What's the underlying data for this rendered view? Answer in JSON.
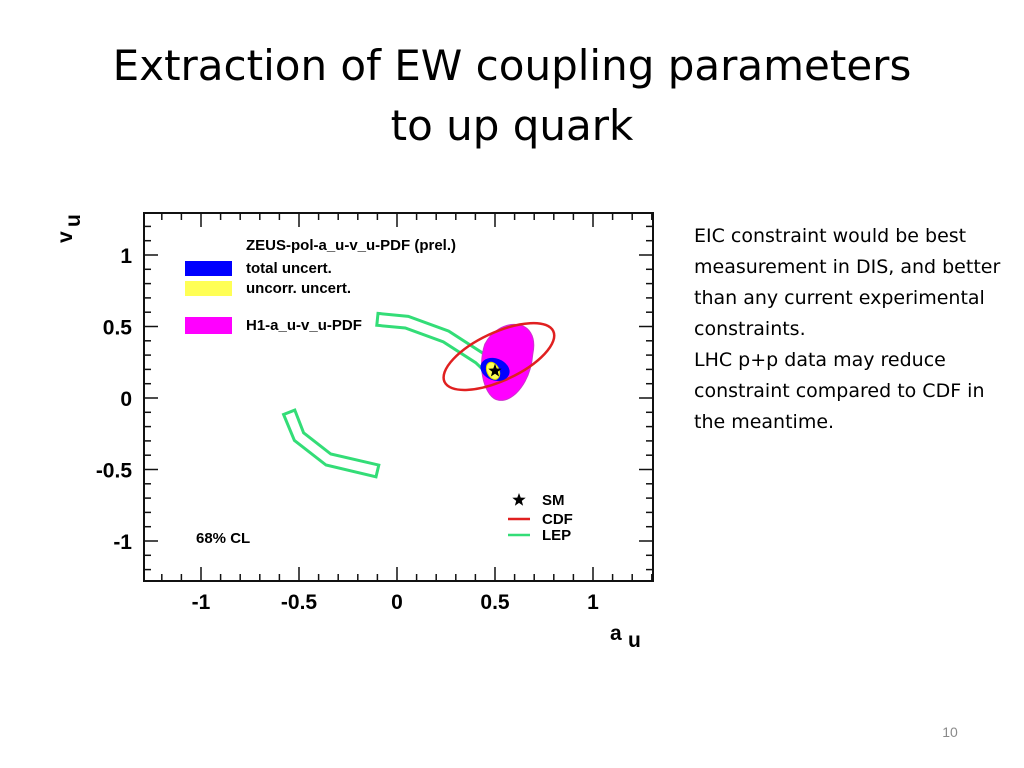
{
  "slide": {
    "title_line1": "Extraction of EW coupling parameters",
    "title_line2": "to up quark",
    "page_number": "10"
  },
  "side_text": {
    "para1": "EIC constraint would be best measurement in DIS, and better than any current experimental constraints.",
    "para2": "LHC p+p data may reduce constraint compared to CDF in the meantime."
  },
  "chart_data": {
    "type": "scatter",
    "xlabel": "a",
    "xlabel_sub": "u",
    "ylabel": "v",
    "ylabel_sub": "u",
    "xlim": [
      -1.3,
      1.3
    ],
    "ylim": [
      -1.3,
      1.3
    ],
    "xticks": [
      "-1",
      "-0.5",
      "0",
      "0.5",
      "1"
    ],
    "yticks": [
      "1",
      "0.5",
      "0",
      "-0.5",
      "-1"
    ],
    "cl_label": "68% CL",
    "legend_top": {
      "header": "ZEUS-pol-a_u-v_u-PDF (prel.)",
      "items": [
        {
          "label": "total uncert.",
          "color": "#0000ff"
        },
        {
          "label": "uncorr. uncert.",
          "color": "#ffff55"
        },
        {
          "label": "H1-a_u-v_u-PDF",
          "color": "#ff00ff"
        }
      ]
    },
    "legend_bottom": {
      "items": [
        {
          "label": "SM",
          "marker": "star",
          "color": "#000000"
        },
        {
          "label": "CDF",
          "marker": "line",
          "color": "#e02020"
        },
        {
          "label": "LEP",
          "marker": "line",
          "color": "#33dd77"
        }
      ]
    },
    "series": [
      {
        "name": "SM",
        "points": [
          {
            "x": 0.5,
            "y": 0.19
          }
        ]
      }
    ],
    "regions": {
      "h1_center": {
        "x": 0.56,
        "y": 0.25
      },
      "zeus_total_center": {
        "x": 0.5,
        "y": 0.2
      },
      "zeus_uncorr_center": {
        "x": 0.49,
        "y": 0.19
      },
      "cdf_center": {
        "x": 0.52,
        "y": 0.29
      },
      "lep_upper_arc": [
        [
          -0.1,
          0.55
        ],
        [
          0.05,
          0.53
        ],
        [
          0.25,
          0.43
        ],
        [
          0.42,
          0.28
        ],
        [
          0.52,
          0.15
        ]
      ],
      "lep_lower_arc": [
        [
          -0.55,
          -0.1
        ],
        [
          -0.5,
          -0.27
        ],
        [
          -0.35,
          -0.43
        ],
        [
          -0.1,
          -0.51
        ]
      ]
    }
  }
}
